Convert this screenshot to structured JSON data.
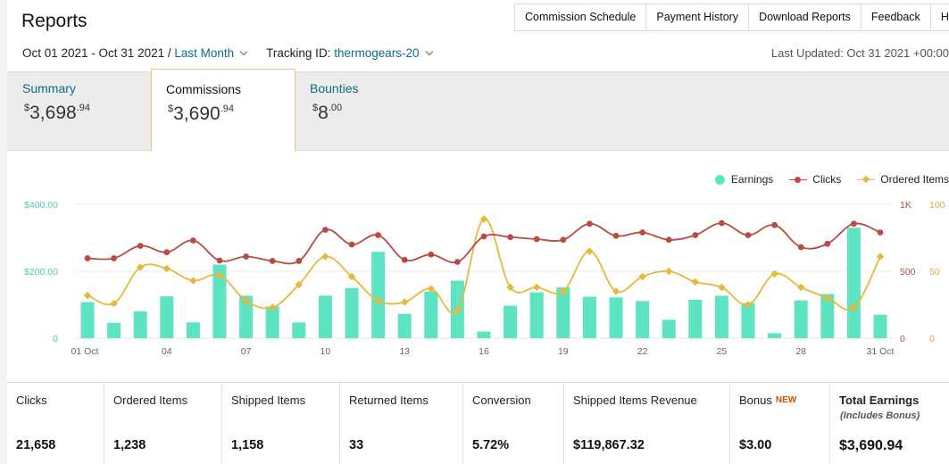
{
  "header": {
    "title": "Reports",
    "nav": [
      "Commission Schedule",
      "Payment History",
      "Download Reports",
      "Feedback",
      "Help"
    ],
    "date_range": "Oct 01 2021 - Oct 31 2021 /",
    "date_preset": "Last Month",
    "tracking_label": "Tracking ID:",
    "tracking_id": "thermogears-20",
    "last_updated": "Last Updated: Oct 31 2021 +00:00"
  },
  "tabs": {
    "summary": {
      "label": "Summary",
      "currency": "$",
      "whole": "3,698",
      "cents": ".94"
    },
    "commissions": {
      "label": "Commissions",
      "currency": "$",
      "whole": "3,690",
      "cents": ".94"
    },
    "bounties": {
      "label": "Bounties",
      "currency": "$",
      "whole": "8",
      "cents": ".00"
    }
  },
  "legend": {
    "earnings": "Earnings",
    "clicks": "Clicks",
    "ordered": "Ordered Items"
  },
  "colors": {
    "earnings": "#5ee3c3",
    "clicks": "#b94a44",
    "ordered": "#e6b83c",
    "link": "#0b6c8a"
  },
  "chart_data": {
    "type": "bar",
    "x": [
      "01 Oct",
      "02",
      "03",
      "04",
      "05",
      "06",
      "07",
      "08",
      "09",
      "10",
      "11",
      "12",
      "13",
      "14",
      "15",
      "16",
      "17",
      "18",
      "19",
      "20",
      "21",
      "22",
      "23",
      "24",
      "25",
      "26",
      "27",
      "28",
      "29",
      "30",
      "31 Oct"
    ],
    "x_tick_labels": [
      "01 Oct",
      "04",
      "07",
      "10",
      "13",
      "16",
      "19",
      "22",
      "25",
      "28",
      "31 Oct"
    ],
    "x_tick_indices": [
      0,
      3,
      6,
      9,
      12,
      15,
      18,
      21,
      24,
      27,
      30
    ],
    "left_axis": {
      "ticks": [
        "0",
        "$200.00",
        "$400.00"
      ],
      "ylim": [
        0,
        400
      ]
    },
    "right_axis_clicks": {
      "ticks": [
        "0",
        "500",
        "1K"
      ],
      "ylim": [
        0,
        1000
      ]
    },
    "right_axis_items": {
      "ticks": [
        "0",
        "50",
        "100"
      ],
      "ylim": [
        0,
        100
      ]
    },
    "series": [
      {
        "name": "Earnings",
        "axis": "left",
        "kind": "bar",
        "values": [
          108,
          46,
          80,
          125,
          47,
          220,
          127,
          95,
          47,
          127,
          150,
          258,
          73,
          140,
          172,
          20,
          97,
          137,
          152,
          124,
          122,
          111,
          55,
          115,
          127,
          105,
          15,
          113,
          132,
          330,
          70
        ]
      },
      {
        "name": "Clicks",
        "axis": "right_clicks",
        "kind": "line",
        "values": [
          597,
          597,
          690,
          642,
          730,
          580,
          610,
          577,
          577,
          810,
          700,
          770,
          585,
          625,
          570,
          760,
          755,
          740,
          735,
          855,
          765,
          790,
          735,
          770,
          860,
          770,
          845,
          680,
          705,
          855,
          790
        ]
      },
      {
        "name": "Ordered Items",
        "axis": "right_items",
        "kind": "line",
        "values": [
          32,
          26,
          53,
          52,
          43,
          47,
          28,
          23,
          40,
          61,
          46,
          28,
          27,
          37,
          21,
          89,
          38,
          38,
          35,
          65,
          35,
          46,
          50,
          42,
          38,
          25,
          48,
          38,
          30,
          23,
          61
        ]
      }
    ]
  },
  "stats": [
    {
      "label": "Clicks",
      "value": "21,658"
    },
    {
      "label": "Ordered Items",
      "value": "1,238"
    },
    {
      "label": "Shipped Items",
      "value": "1,158"
    },
    {
      "label": "Returned Items",
      "value": "33"
    },
    {
      "label": "Conversion",
      "value": "5.72%"
    },
    {
      "label": "Shipped Items Revenue",
      "value": "$119,867.32"
    },
    {
      "label": "Bonus",
      "badge": "NEW",
      "value": "$3.00"
    },
    {
      "label": "Total Earnings",
      "sub": "(Includes Bonus)",
      "value": "$3,690.94"
    }
  ]
}
